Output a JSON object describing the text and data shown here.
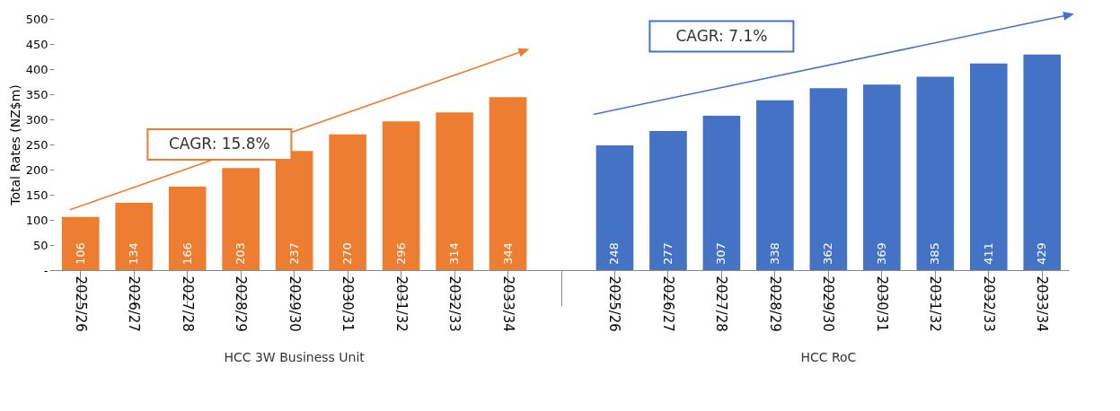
{
  "chart_data": {
    "type": "bar",
    "ylabel": "Total Rates (NZ$m)",
    "categories": [
      "2025/26",
      "2026/27",
      "2027/28",
      "2028/29",
      "2029/30",
      "2030/31",
      "2031/32",
      "2032/33",
      "2033/34",
      null,
      "2025/26",
      "2026/27",
      "2027/28",
      "2028/29",
      "2029/30",
      "2030/31",
      "2031/32",
      "2032/33",
      "2033/34"
    ],
    "series": [
      {
        "color": "#ed7d31",
        "values": [
          106,
          134,
          166,
          203,
          237,
          270,
          296,
          314,
          344,
          null,
          null,
          null,
          null,
          null,
          null,
          null,
          null,
          null,
          null
        ]
      },
      {
        "color": "#4472c4",
        "values": [
          null,
          null,
          null,
          null,
          null,
          null,
          null,
          null,
          null,
          null,
          248,
          277,
          307,
          338,
          362,
          369,
          385,
          411,
          429
        ]
      }
    ],
    "ylim": [
      0,
      500
    ],
    "yticks": [
      {
        "value": 0,
        "label": "-"
      },
      50,
      100,
      150,
      200,
      250,
      300,
      350,
      400,
      450,
      500
    ],
    "data_labels": true,
    "grid": false,
    "legend": false,
    "annotations": [
      "CAGR: 15.8%",
      "CAGR: 7.1%",
      "HCC 3W Business Unit",
      "HCC RoC"
    ]
  }
}
